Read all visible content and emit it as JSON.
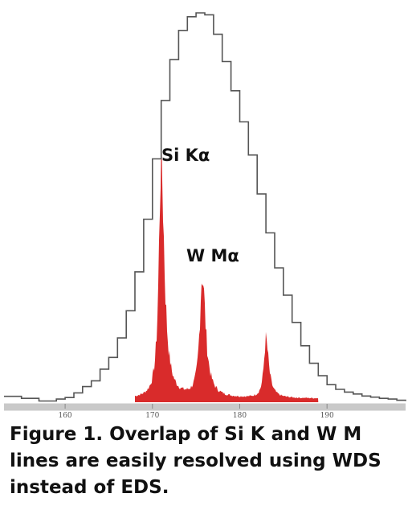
{
  "chart_data": {
    "type": "area",
    "title": "",
    "xlabel": "",
    "ylabel": "",
    "xlim": [
      153,
      199
    ],
    "ylim": [
      0,
      100
    ],
    "x_ticks": [
      160,
      170,
      180,
      190
    ],
    "grid": false,
    "series": [
      {
        "kind": "step-outline",
        "color": "#555555",
        "points": [
          [
            153,
            1.5
          ],
          [
            155,
            1.0
          ],
          [
            157,
            0.3
          ],
          [
            159,
            0.8
          ],
          [
            160,
            1.2
          ],
          [
            161,
            2.4
          ],
          [
            162,
            4.0
          ],
          [
            163,
            5.5
          ],
          [
            164,
            8.5
          ],
          [
            165,
            11.5
          ],
          [
            166,
            16.5
          ],
          [
            167,
            23.5
          ],
          [
            168,
            33.5
          ],
          [
            169,
            47.0
          ],
          [
            170,
            62.5
          ],
          [
            171,
            77.5
          ],
          [
            172,
            88.0
          ],
          [
            173,
            95.5
          ],
          [
            174,
            99.0
          ],
          [
            175,
            100.0
          ],
          [
            176,
            99.5
          ],
          [
            177,
            94.5
          ],
          [
            178,
            87.5
          ],
          [
            179,
            80.0
          ],
          [
            180,
            72.0
          ],
          [
            181,
            63.5
          ],
          [
            182,
            53.5
          ],
          [
            183,
            43.5
          ],
          [
            184,
            34.5
          ],
          [
            185,
            27.5
          ],
          [
            186,
            20.5
          ],
          [
            187,
            14.5
          ],
          [
            188,
            10.0
          ],
          [
            189,
            6.8
          ],
          [
            190,
            4.5
          ],
          [
            191,
            3.3
          ],
          [
            192,
            2.6
          ],
          [
            193,
            2.1
          ],
          [
            194,
            1.6
          ],
          [
            195,
            1.3
          ],
          [
            196,
            1.0
          ],
          [
            197,
            0.8
          ],
          [
            198,
            0.5
          ],
          [
            199,
            0.3
          ]
        ]
      },
      {
        "kind": "filled",
        "color": "#d92b2b",
        "peaks": [
          {
            "label": "Si Kα",
            "x": 171.0,
            "height": 62.0
          },
          {
            "label": "W Mα",
            "x": 175.7,
            "height": 31.5
          },
          {
            "label": "",
            "x": 183.0,
            "height": 15.0
          }
        ],
        "range": [
          168.0,
          189.0
        ]
      }
    ]
  },
  "caption": "Figure 1. Overlap of Si K and W M lines are easily resolved using WDS instead of EDS."
}
